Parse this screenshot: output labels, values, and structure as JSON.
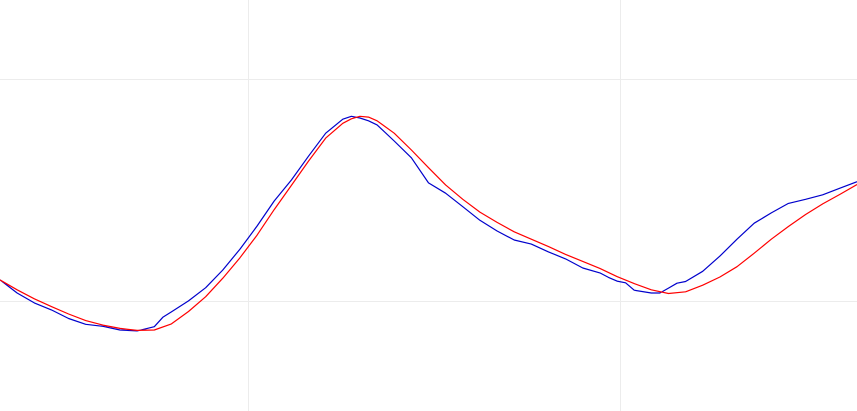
{
  "chart_data": {
    "type": "line",
    "title": "",
    "xlabel": "",
    "ylabel": "",
    "xlim": [
      0,
      100
    ],
    "ylim": [
      0,
      100
    ],
    "grid": true,
    "x_gridlines": [
      28.9,
      72.4
    ],
    "y_gridlines": [
      26.8,
      80.8
    ],
    "series": [
      {
        "color": "#0000cc",
        "x": [
          0,
          2,
          4,
          6,
          8,
          10,
          12,
          14,
          16,
          18,
          19,
          20,
          22,
          24,
          26,
          28,
          30,
          32,
          34,
          36,
          38,
          40,
          41,
          42,
          43,
          44,
          46,
          48,
          50,
          52,
          54,
          56,
          58,
          60,
          62,
          64,
          66,
          68,
          70,
          71,
          72,
          73,
          74,
          76,
          77,
          78,
          79,
          80,
          82,
          84,
          86,
          88,
          90,
          92,
          94,
          96,
          98,
          100
        ],
        "y": [
          31.9,
          28.7,
          26.3,
          24.6,
          22.5,
          21.1,
          20.6,
          19.7,
          19.5,
          20.5,
          22.8,
          24.1,
          26.8,
          30.0,
          34.3,
          39.4,
          45.0,
          51.1,
          56.2,
          62.0,
          67.6,
          71.0,
          71.7,
          71.3,
          70.6,
          69.6,
          65.7,
          61.6,
          55.5,
          53.0,
          49.7,
          46.4,
          43.8,
          41.6,
          40.6,
          38.7,
          37.0,
          34.8,
          33.6,
          32.5,
          31.6,
          31.2,
          29.4,
          28.7,
          28.7,
          29.9,
          31.1,
          31.5,
          34.0,
          37.7,
          41.8,
          45.7,
          48.2,
          50.5,
          51.5,
          52.6,
          54.2,
          55.8
        ]
      },
      {
        "color": "#ff0000",
        "x": [
          0,
          2,
          4,
          6,
          8,
          10,
          12,
          14,
          16,
          18,
          20,
          22,
          24,
          26,
          28,
          30,
          32,
          34,
          36,
          38,
          40,
          41,
          42,
          43,
          44,
          46,
          48,
          50,
          52,
          54,
          56,
          58,
          60,
          62,
          64,
          66,
          68,
          70,
          72,
          74,
          76,
          78,
          80,
          82,
          84,
          86,
          88,
          90,
          92,
          94,
          96,
          98,
          100
        ],
        "y": [
          31.9,
          29.5,
          27.3,
          25.4,
          23.6,
          22.0,
          20.9,
          20.1,
          19.6,
          19.7,
          21.2,
          24.2,
          27.8,
          32.3,
          37.3,
          42.8,
          49.0,
          54.9,
          60.8,
          66.4,
          70.0,
          71.1,
          71.7,
          71.5,
          70.6,
          67.6,
          63.5,
          59.2,
          55.0,
          51.5,
          48.4,
          45.9,
          43.6,
          41.8,
          40.0,
          38.1,
          36.4,
          34.7,
          32.7,
          31.0,
          29.5,
          28.6,
          29.0,
          30.6,
          32.6,
          35.1,
          38.4,
          41.8,
          44.9,
          47.8,
          50.4,
          52.7,
          55.1
        ]
      }
    ]
  }
}
